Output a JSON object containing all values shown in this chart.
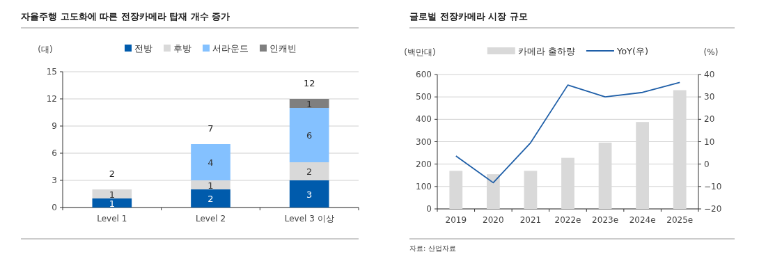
{
  "chart_data": [
    {
      "type": "bar",
      "title": "자율주행 고도화에 따른 전장카메라 탑재 개수 증가",
      "ylabel": "(대)",
      "categories": [
        "Level 1",
        "Level 2",
        "Level 3 이상"
      ],
      "stacked": true,
      "data_labels": true,
      "totals": [
        "2",
        "7",
        "12"
      ],
      "ylim": [
        0,
        15
      ],
      "yticks": [
        0,
        3,
        6,
        9,
        12,
        15
      ],
      "grid": "y",
      "legend": "top",
      "series": [
        {
          "name": "전방",
          "color": "#005bac",
          "values": [
            1,
            2,
            3
          ]
        },
        {
          "name": "후방",
          "color": "#d9d9d9",
          "values": [
            1,
            1,
            2
          ]
        },
        {
          "name": "서라운드",
          "color": "#84c1ff",
          "values": [
            null,
            4,
            6
          ]
        },
        {
          "name": "인캐빈",
          "color": "#7f7f7f",
          "values": [
            null,
            null,
            1
          ]
        }
      ]
    },
    {
      "type": "bar",
      "title": "글로벌 전장카메라 시장 규모",
      "ylabel": "(백만대)",
      "y2label": "(%)",
      "categories": [
        "2019",
        "2020",
        "2021",
        "2022e",
        "2023e",
        "2024e",
        "2025e"
      ],
      "ylim": [
        0,
        600
      ],
      "yticks": [
        0,
        100,
        200,
        300,
        400,
        500,
        600
      ],
      "y2lim": [
        -20,
        40
      ],
      "y2ticks": [
        {
          "value": -20,
          "label": "−20"
        },
        {
          "value": -10,
          "label": "−10"
        },
        0,
        10,
        20,
        30,
        40
      ],
      "grid": "y",
      "legend": "top",
      "annotations": [
        "자료: 산업자료"
      ],
      "series": [
        {
          "name": "카메라 출하량",
          "color": "#d9d9d9",
          "values": [
            170,
            155,
            170,
            228,
            296,
            388,
            530
          ]
        },
        {
          "name": "YoY(우)",
          "type": "line",
          "axis": "y2",
          "color": "#1f5fa8",
          "values": [
            3.6,
            -8.3,
            9.5,
            35.3,
            30,
            32,
            36.5
          ]
        }
      ]
    }
  ]
}
